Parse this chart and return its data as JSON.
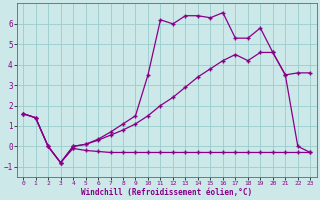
{
  "xlabel": "Windchill (Refroidissement éolien,°C)",
  "bg_color": "#cce8e8",
  "grid_color": "#99cccc",
  "line_color": "#880088",
  "x": [
    0,
    1,
    2,
    3,
    4,
    5,
    6,
    7,
    8,
    9,
    10,
    11,
    12,
    13,
    14,
    15,
    16,
    17,
    18,
    19,
    20,
    21,
    22,
    23
  ],
  "line1": [
    1.6,
    1.4,
    0.0,
    -0.8,
    -0.1,
    -0.2,
    -0.25,
    -0.3,
    -0.3,
    -0.3,
    -0.3,
    -0.3,
    -0.3,
    -0.3,
    -0.3,
    -0.3,
    -0.3,
    -0.3,
    -0.3,
    -0.3,
    -0.3,
    -0.3,
    -0.3,
    -0.3
  ],
  "line2": [
    1.6,
    1.4,
    0.0,
    -0.8,
    0.0,
    0.1,
    0.3,
    0.55,
    0.8,
    1.1,
    1.5,
    2.0,
    2.4,
    2.9,
    3.4,
    3.8,
    4.2,
    4.5,
    4.2,
    4.6,
    4.6,
    3.5,
    3.6,
    3.6
  ],
  "line3": [
    1.6,
    1.4,
    0.0,
    -0.8,
    0.0,
    0.1,
    0.35,
    0.7,
    1.1,
    1.5,
    3.5,
    6.2,
    6.0,
    6.4,
    6.4,
    6.3,
    6.55,
    5.3,
    5.3,
    5.8,
    4.6,
    3.5,
    0.0,
    -0.3
  ],
  "xlim": [
    -0.5,
    23.5
  ],
  "ylim": [
    -1.5,
    7.0
  ],
  "yticks": [
    -1,
    0,
    1,
    2,
    3,
    4,
    5,
    6
  ],
  "xticks": [
    0,
    1,
    2,
    3,
    4,
    5,
    6,
    7,
    8,
    9,
    10,
    11,
    12,
    13,
    14,
    15,
    16,
    17,
    18,
    19,
    20,
    21,
    22,
    23
  ]
}
